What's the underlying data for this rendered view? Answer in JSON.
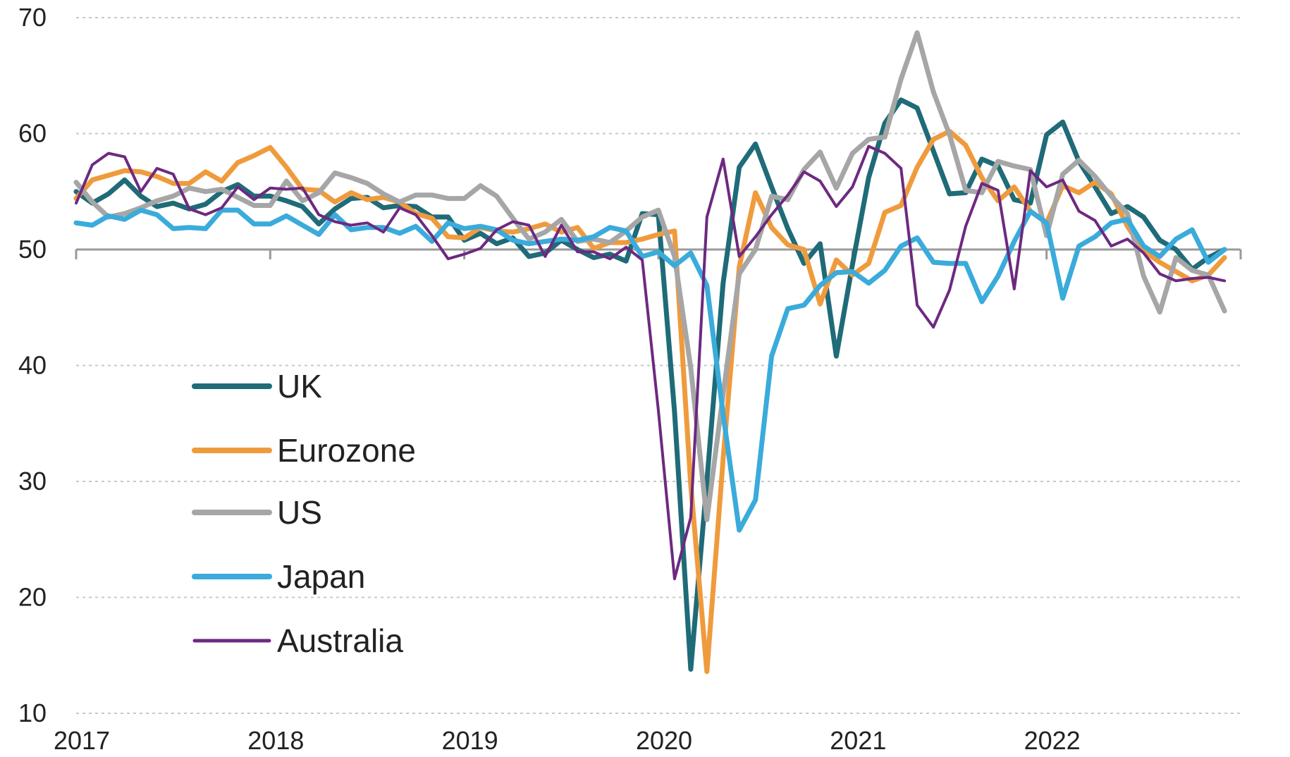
{
  "chart_data": {
    "type": "line",
    "x_start": "2017-01",
    "x_end": "2022-12",
    "xticks": [
      "2017",
      "2018",
      "2019",
      "2020",
      "2021",
      "2022"
    ],
    "yticks": [
      "10",
      "20",
      "30",
      "40",
      "50",
      "60",
      "70"
    ],
    "ylim": [
      10,
      70
    ],
    "reference_line": 50,
    "grid": true,
    "legend_position": "left-center",
    "series": [
      {
        "name": "UK",
        "color": "#1f6b78",
        "width": 7,
        "values": [
          55.0,
          54.0,
          54.8,
          56.0,
          54.6,
          53.7,
          54.0,
          53.5,
          53.9,
          55.0,
          55.6,
          54.6,
          54.6,
          54.2,
          53.7,
          52.2,
          53.5,
          54.4,
          54.5,
          53.6,
          53.8,
          53.7,
          52.8,
          52.8,
          50.8,
          51.4,
          50.5,
          51.0,
          49.4,
          49.7,
          50.8,
          50.0,
          49.3,
          49.6,
          49.0,
          53.1,
          53.0,
          36.0,
          13.8,
          30.0,
          47.1,
          57.1,
          59.1,
          55.4,
          51.8,
          48.8,
          50.5,
          40.8,
          48.7,
          56.2,
          60.9,
          62.9,
          62.2,
          58.5,
          54.8,
          54.9,
          57.8,
          57.2,
          54.3,
          54.0,
          59.9,
          61.0,
          57.6,
          55.4,
          53.1,
          53.7,
          52.8,
          50.8,
          50.0,
          48.3,
          49.3,
          50.0
        ]
      },
      {
        "name": "Eurozone",
        "color": "#ef9b3d",
        "width": 7,
        "values": [
          54.4,
          56.0,
          56.4,
          56.8,
          56.7,
          56.3,
          55.7,
          55.7,
          56.7,
          55.9,
          57.5,
          58.1,
          58.8,
          57.1,
          55.2,
          55.1,
          54.1,
          54.9,
          54.3,
          54.5,
          54.1,
          53.1,
          52.7,
          51.1,
          51.0,
          51.9,
          51.6,
          51.5,
          51.8,
          52.2,
          51.5,
          51.9,
          50.1,
          50.6,
          50.6,
          50.9,
          51.3,
          51.6,
          29.7,
          13.6,
          31.9,
          48.5,
          54.9,
          51.9,
          50.4,
          50.0,
          45.3,
          49.1,
          47.8,
          48.8,
          53.2,
          53.8,
          57.1,
          59.5,
          60.2,
          59.0,
          56.2,
          54.2,
          55.4,
          53.3,
          52.3,
          55.5,
          54.9,
          55.8,
          54.8,
          52.0,
          49.9,
          48.9,
          48.1,
          47.3,
          47.8,
          49.3
        ]
      },
      {
        "name": "US",
        "color": "#a6a6a6",
        "width": 7,
        "values": [
          55.8,
          54.1,
          52.8,
          53.1,
          53.6,
          54.2,
          54.6,
          55.3,
          55.0,
          55.2,
          54.5,
          53.8,
          53.8,
          55.9,
          54.2,
          54.9,
          56.6,
          56.2,
          55.7,
          54.8,
          54.1,
          54.7,
          54.7,
          54.4,
          54.4,
          55.5,
          54.6,
          52.7,
          50.9,
          51.5,
          52.6,
          50.7,
          50.9,
          50.6,
          51.6,
          52.8,
          53.4,
          49.4,
          39.8,
          26.7,
          37.5,
          47.9,
          50.0,
          54.6,
          54.3,
          56.9,
          58.4,
          55.3,
          58.3,
          59.5,
          59.7,
          64.7,
          68.7,
          63.6,
          59.9,
          55.1,
          54.9,
          57.6,
          57.2,
          56.9,
          51.2,
          56.5,
          57.7,
          56.3,
          54.6,
          53.1,
          47.7,
          44.6,
          49.3,
          48.2,
          47.8,
          44.7
        ]
      },
      {
        "name": "Japan",
        "color": "#3aabdb",
        "width": 7,
        "values": [
          52.3,
          52.1,
          52.9,
          52.6,
          53.4,
          53.0,
          51.8,
          51.9,
          51.8,
          53.4,
          53.4,
          52.2,
          52.2,
          52.9,
          52.1,
          51.3,
          53.0,
          51.7,
          51.9,
          51.9,
          51.4,
          52.0,
          50.7,
          52.3,
          51.8,
          52.0,
          51.7,
          50.8,
          50.5,
          50.7,
          50.9,
          50.8,
          51.1,
          51.9,
          51.6,
          49.4,
          49.8,
          48.6,
          49.7,
          46.9,
          35.8,
          25.8,
          28.4,
          40.8,
          44.9,
          45.2,
          46.9,
          48.0,
          48.1,
          47.1,
          48.2,
          50.3,
          51.0,
          48.9,
          48.8,
          48.8,
          45.5,
          47.7,
          50.7,
          53.3,
          52.3,
          45.8,
          50.3,
          51.1,
          52.3,
          52.6,
          50.3,
          49.4,
          50.9,
          51.7,
          48.9,
          50.0
        ]
      },
      {
        "name": "Australia",
        "color": "#6d2980",
        "width": 4,
        "values": [
          54.0,
          57.3,
          58.3,
          58.0,
          55.0,
          57.0,
          56.5,
          53.5,
          53.0,
          53.6,
          55.4,
          54.3,
          55.3,
          55.2,
          55.3,
          53.0,
          52.4,
          52.1,
          52.3,
          51.5,
          53.6,
          53.0,
          51.2,
          49.2,
          49.6,
          50.1,
          51.7,
          52.4,
          52.1,
          49.4,
          52.1,
          49.8,
          49.8,
          49.2,
          50.2,
          49.1,
          36.1,
          21.6,
          26.9,
          52.8,
          57.8,
          49.4,
          51.1,
          53.0,
          54.7,
          56.7,
          55.9,
          53.7,
          55.4,
          58.9,
          58.3,
          57.0,
          45.2,
          43.3,
          46.5,
          52.0,
          55.7,
          55.1,
          46.6,
          56.8,
          55.4,
          56.0,
          53.3,
          52.5,
          50.3,
          50.9,
          49.7,
          47.9,
          47.3,
          47.5,
          47.6,
          47.3
        ]
      }
    ]
  }
}
